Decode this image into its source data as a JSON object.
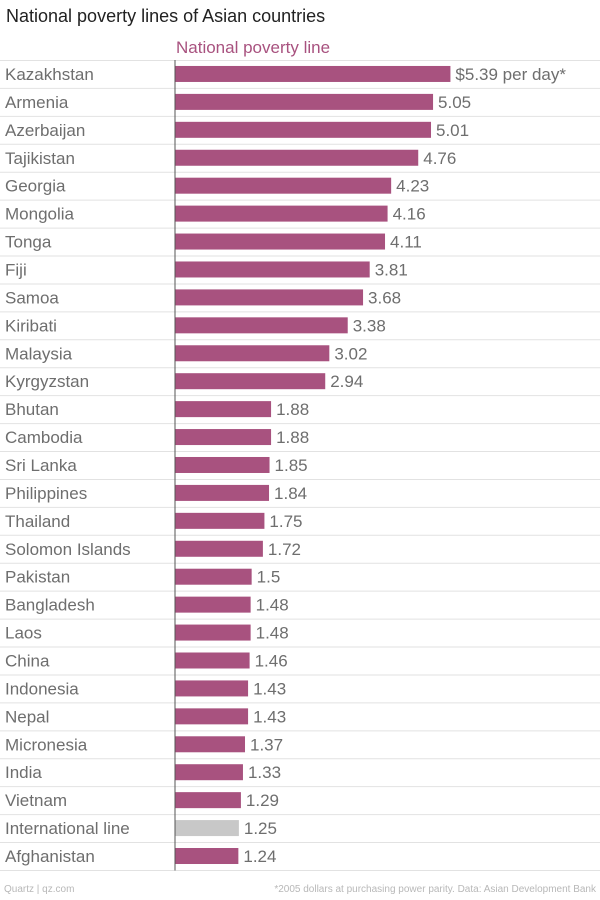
{
  "colors": {
    "bar": "#a8527f",
    "highlight_bar": "#c8c8c8",
    "series_label": "#a8527f",
    "category_text": "#6e6e6e",
    "value_text": "#6e6e6e",
    "gridline": "#e2e2e2",
    "axis": "#555555"
  },
  "footer": {
    "source_left": "Quartz | qz.com",
    "note_right": "*2005 dollars at purchasing power parity. Data: Asian Development Bank"
  },
  "chart_data": {
    "type": "bar",
    "orientation": "horizontal",
    "title": "National poverty lines of Asian countries",
    "series_name": "National poverty line",
    "xlim": [
      0,
      5.6
    ],
    "grid": true,
    "categories": [
      "Kazakhstan",
      "Armenia",
      "Azerbaijan",
      "Tajikistan",
      "Georgia",
      "Mongolia",
      "Tonga",
      "Fiji",
      "Samoa",
      "Kiribati",
      "Malaysia",
      "Kyrgyzstan",
      "Bhutan",
      "Cambodia",
      "Sri Lanka",
      "Philippines",
      "Thailand",
      "Solomon Islands",
      "Pakistan",
      "Bangladesh",
      "Laos",
      "China",
      "Indonesia",
      "Nepal",
      "Micronesia",
      "India",
      "Vietnam",
      "International line",
      "Afghanistan"
    ],
    "values": [
      5.39,
      5.05,
      5.01,
      4.76,
      4.23,
      4.16,
      4.11,
      3.81,
      3.68,
      3.38,
      3.02,
      2.94,
      1.88,
      1.88,
      1.85,
      1.84,
      1.75,
      1.72,
      1.5,
      1.48,
      1.48,
      1.46,
      1.43,
      1.43,
      1.37,
      1.33,
      1.29,
      1.25,
      1.24
    ],
    "value_labels": [
      "$5.39 per day*",
      "5.05",
      "5.01",
      "4.76",
      "4.23",
      "4.16",
      "4.11",
      "3.81",
      "3.68",
      "3.38",
      "3.02",
      "2.94",
      "1.88",
      "1.88",
      "1.85",
      "1.84",
      "1.75",
      "1.72",
      "1.5",
      "1.48",
      "1.48",
      "1.46",
      "1.43",
      "1.43",
      "1.37",
      "1.33",
      "1.29",
      "1.25",
      "1.24"
    ],
    "highlight_category": "International line"
  }
}
